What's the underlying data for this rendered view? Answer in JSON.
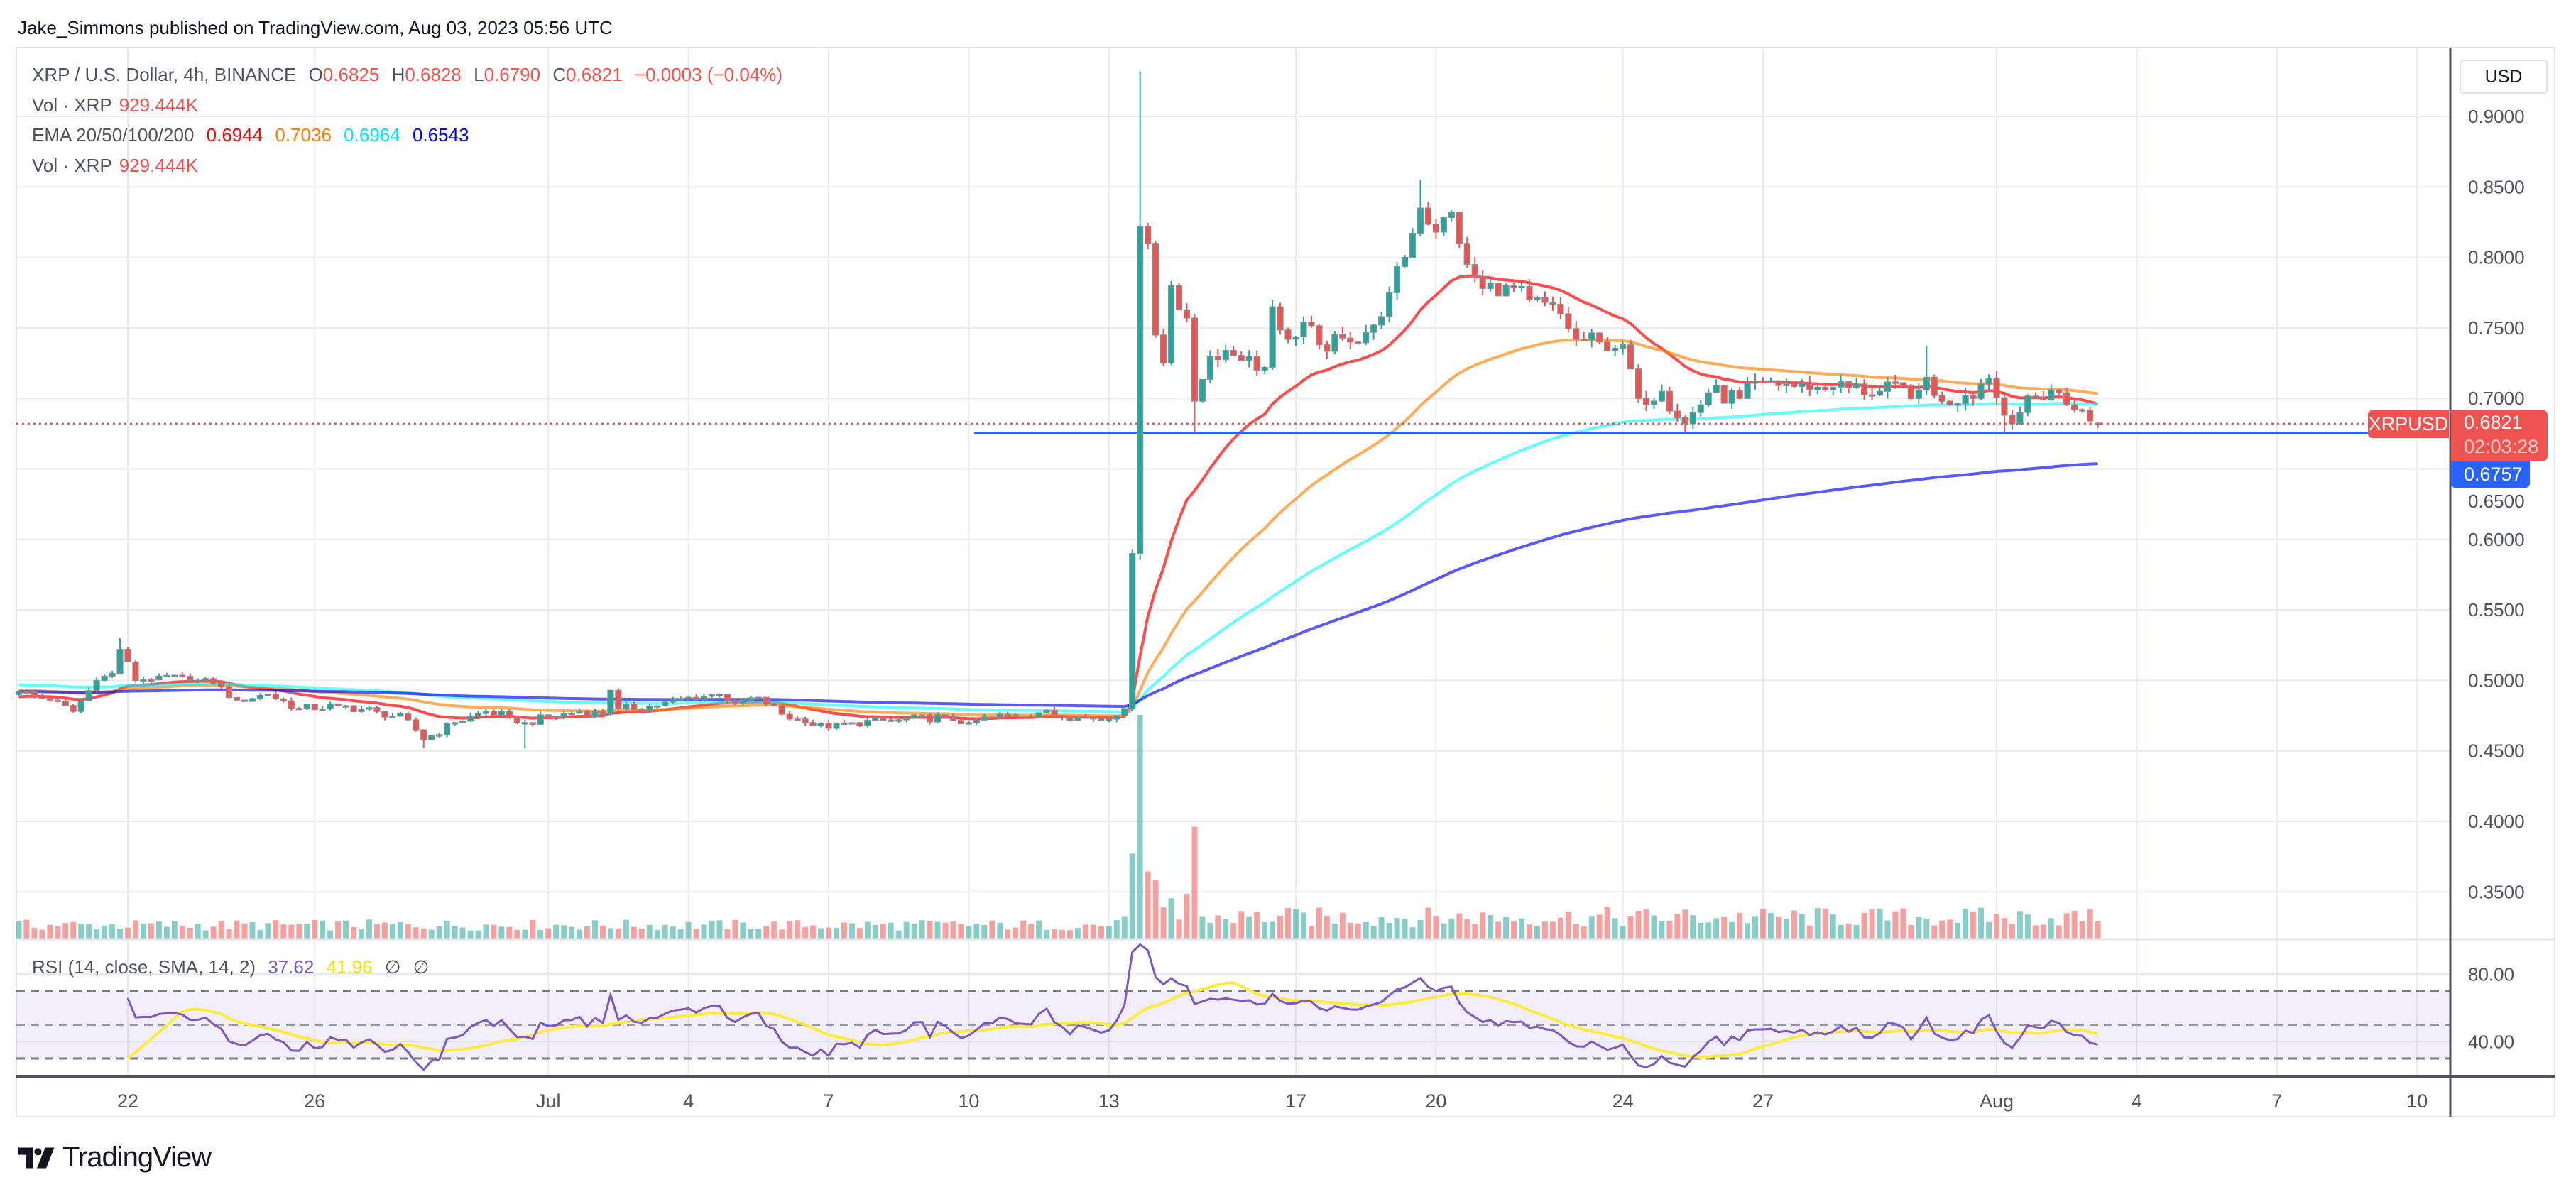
{
  "header": {
    "published": "Jake_Simmons published on TradingView.com, Aug 03, 2023 05:56 UTC"
  },
  "legend": {
    "symbol": "XRP / U.S. Dollar, 4h, BINANCE",
    "o_label": "O",
    "o": "0.6825",
    "h_label": "H",
    "h": "0.6828",
    "l_label": "L",
    "l": "0.6790",
    "c_label": "C",
    "c": "0.6821",
    "change": "−0.0003 (−0.04%)",
    "vol_label": "Vol · XRP",
    "vol": "929.444K",
    "ema_label": "EMA 20/50/100/200",
    "ema20": "0.6944",
    "ema50": "0.7036",
    "ema100": "0.6964",
    "ema200": "0.6543",
    "vol2_label": "Vol · XRP",
    "vol2": "929.444K",
    "rsi_label": "RSI (14, close, SMA, 14, 2)",
    "rsi": "37.62",
    "rsi_sma": "41.96",
    "rsi_extra1": "∅",
    "rsi_extra2": "∅"
  },
  "price_axis": {
    "currency": "USD",
    "ticks": [
      "0.9000",
      "0.8500",
      "0.8000",
      "0.7500",
      "0.7000",
      "0.6500",
      "0.6000",
      "0.5500",
      "0.5000",
      "0.4500",
      "0.4000",
      "0.3500"
    ],
    "symbol_tag": "XRPUSD",
    "last_price": "0.6821",
    "countdown": "02:03:28",
    "line_price": "0.6757"
  },
  "rsi_axis": {
    "ticks": [
      "80.00",
      "40.00"
    ]
  },
  "time_axis": {
    "ticks": [
      {
        "label": "22",
        "date": "2023-06-22"
      },
      {
        "label": "26",
        "date": "2023-06-26"
      },
      {
        "label": "Jul",
        "date": "2023-07-01"
      },
      {
        "label": "4",
        "date": "2023-07-04"
      },
      {
        "label": "7",
        "date": "2023-07-07"
      },
      {
        "label": "10",
        "date": "2023-07-10"
      },
      {
        "label": "13",
        "date": "2023-07-13"
      },
      {
        "label": "17",
        "date": "2023-07-17"
      },
      {
        "label": "20",
        "date": "2023-07-20"
      },
      {
        "label": "24",
        "date": "2023-07-24"
      },
      {
        "label": "27",
        "date": "2023-07-27"
      },
      {
        "label": "Aug",
        "date": "2023-08-01"
      },
      {
        "label": "4",
        "date": "2023-08-04"
      },
      {
        "label": "7",
        "date": "2023-08-07"
      },
      {
        "label": "10",
        "date": "2023-08-10"
      }
    ]
  },
  "brand": {
    "name": "TradingView"
  },
  "colors": {
    "up": "#26a69a",
    "down": "#ef5350",
    "ema20": "#ff0000",
    "ema50": "#ff8000",
    "ema100": "#00ffff",
    "ema200": "#0000ff",
    "rsi": "#7e57c2",
    "rsi_sma": "#ffeb3b",
    "last_price": "#ef5350",
    "hline": "#2962ff"
  },
  "chart_data": {
    "type": "candlestick",
    "interval": "4h",
    "ylim": [
      0.33,
      0.93
    ],
    "grid": true,
    "horizontal_line": 0.6757,
    "last_bar": {
      "time": "2023-08-03T04:00",
      "open": 0.6825,
      "high": 0.6828,
      "low": 0.679,
      "close": 0.6821
    },
    "close_path": [
      [
        "2023-06-19T16:00",
        0.492
      ],
      [
        "2023-06-20T08:00",
        0.486
      ],
      [
        "2023-06-20T20:00",
        0.478
      ],
      [
        "2023-06-21T08:00",
        0.5
      ],
      [
        "2023-06-21T16:00",
        0.505
      ],
      [
        "2023-06-21T20:00",
        0.522
      ],
      [
        "2023-06-22T04:00",
        0.5
      ],
      [
        "2023-06-22T16:00",
        0.503
      ],
      [
        "2023-06-23T08:00",
        0.5
      ],
      [
        "2023-06-23T20:00",
        0.498
      ],
      [
        "2023-06-24T08:00",
        0.486
      ],
      [
        "2023-06-25T00:00",
        0.49
      ],
      [
        "2023-06-25T16:00",
        0.48
      ],
      [
        "2023-06-26T12:00",
        0.482
      ],
      [
        "2023-06-27T08:00",
        0.478
      ],
      [
        "2023-06-28T00:00",
        0.472
      ],
      [
        "2023-06-28T08:00",
        0.458
      ],
      [
        "2023-06-29T00:00",
        0.47
      ],
      [
        "2023-06-29T16:00",
        0.478
      ],
      [
        "2023-06-30T04:00",
        0.474
      ],
      [
        "2023-06-30T12:00",
        0.47
      ],
      [
        "2023-07-01T00:00",
        0.474
      ],
      [
        "2023-07-01T16:00",
        0.478
      ],
      [
        "2023-07-02T04:00",
        0.476
      ],
      [
        "2023-07-02T08:00",
        0.493
      ],
      [
        "2023-07-02T12:00",
        0.48
      ],
      [
        "2023-07-03T08:00",
        0.482
      ],
      [
        "2023-07-04T00:00",
        0.488
      ],
      [
        "2023-07-04T16:00",
        0.49
      ],
      [
        "2023-07-05T00:00",
        0.484
      ],
      [
        "2023-07-05T12:00",
        0.488
      ],
      [
        "2023-07-06T00:00",
        0.476
      ],
      [
        "2023-07-06T12:00",
        0.47
      ],
      [
        "2023-07-07T00:00",
        0.466
      ],
      [
        "2023-07-07T12:00",
        0.47
      ],
      [
        "2023-07-08T12:00",
        0.472
      ],
      [
        "2023-07-09T12:00",
        0.474
      ],
      [
        "2023-07-10T00:00",
        0.47
      ],
      [
        "2023-07-10T12:00",
        0.474
      ],
      [
        "2023-07-11T12:00",
        0.477
      ],
      [
        "2023-07-12T08:00",
        0.474
      ],
      [
        "2023-07-12T20:00",
        0.472
      ],
      [
        "2023-07-13T04:00",
        0.475
      ],
      [
        "2023-07-13T08:00",
        0.48
      ],
      [
        "2023-07-13T12:00",
        0.59
      ],
      [
        "2023-07-13T16:00",
        0.822
      ],
      [
        "2023-07-13T20:00",
        0.81
      ],
      [
        "2023-07-14T00:00",
        0.745
      ],
      [
        "2023-07-14T04:00",
        0.725
      ],
      [
        "2023-07-14T08:00",
        0.78
      ],
      [
        "2023-07-14T16:00",
        0.757
      ],
      [
        "2023-07-14T20:00",
        0.698
      ],
      [
        "2023-07-15T04:00",
        0.73
      ],
      [
        "2023-07-15T12:00",
        0.734
      ],
      [
        "2023-07-16T00:00",
        0.73
      ],
      [
        "2023-07-16T08:00",
        0.722
      ],
      [
        "2023-07-16T12:00",
        0.765
      ],
      [
        "2023-07-16T20:00",
        0.742
      ],
      [
        "2023-07-17T04:00",
        0.754
      ],
      [
        "2023-07-17T12:00",
        0.738
      ],
      [
        "2023-07-18T04:00",
        0.74
      ],
      [
        "2023-07-18T16:00",
        0.752
      ],
      [
        "2023-07-19T00:00",
        0.775
      ],
      [
        "2023-07-19T08:00",
        0.8
      ],
      [
        "2023-07-19T16:00",
        0.835
      ],
      [
        "2023-07-20T00:00",
        0.818
      ],
      [
        "2023-07-20T08:00",
        0.832
      ],
      [
        "2023-07-20T16:00",
        0.795
      ],
      [
        "2023-07-21T00:00",
        0.778
      ],
      [
        "2023-07-21T12:00",
        0.78
      ],
      [
        "2023-07-22T00:00",
        0.77
      ],
      [
        "2023-07-22T16:00",
        0.76
      ],
      [
        "2023-07-23T00:00",
        0.742
      ],
      [
        "2023-07-23T12:00",
        0.74
      ],
      [
        "2023-07-24T00:00",
        0.738
      ],
      [
        "2023-07-24T08:00",
        0.7
      ],
      [
        "2023-07-24T20:00",
        0.705
      ],
      [
        "2023-07-25T08:00",
        0.682
      ],
      [
        "2023-07-25T20:00",
        0.704
      ],
      [
        "2023-07-26T12:00",
        0.7
      ],
      [
        "2023-07-27T00:00",
        0.712
      ],
      [
        "2023-07-27T12:00",
        0.71
      ],
      [
        "2023-07-28T00:00",
        0.706
      ],
      [
        "2023-07-28T12:00",
        0.708
      ],
      [
        "2023-07-29T12:00",
        0.705
      ],
      [
        "2023-07-30T08:00",
        0.706
      ],
      [
        "2023-07-30T12:00",
        0.715
      ],
      [
        "2023-07-30T20:00",
        0.698
      ],
      [
        "2023-07-31T08:00",
        0.702
      ],
      [
        "2023-07-31T20:00",
        0.714
      ],
      [
        "2023-08-01T04:00",
        0.688
      ],
      [
        "2023-08-01T12:00",
        0.69
      ],
      [
        "2023-08-01T20:00",
        0.7
      ],
      [
        "2023-08-02T04:00",
        0.706
      ],
      [
        "2023-08-02T16:00",
        0.692
      ],
      [
        "2023-08-03T00:00",
        0.684
      ],
      [
        "2023-08-03T04:00",
        0.6821
      ]
    ],
    "notable_highs": [
      [
        "2023-06-21T20:00",
        0.53
      ],
      [
        "2023-07-13T16:00",
        0.932
      ],
      [
        "2023-07-19T16:00",
        0.855
      ],
      [
        "2023-07-30T12:00",
        0.737
      ]
    ],
    "notable_lows": [
      [
        "2023-06-28T08:00",
        0.452
      ],
      [
        "2023-06-30T12:00",
        0.452
      ],
      [
        "2023-07-14T20:00",
        0.676
      ],
      [
        "2023-07-25T08:00",
        0.676
      ],
      [
        "2023-08-01T04:00",
        0.6757
      ]
    ],
    "volume_highlights": [
      [
        "2023-07-13T08:00",
        0.1
      ],
      [
        "2023-07-13T12:00",
        0.38
      ],
      [
        "2023-07-13T16:00",
        1.0
      ],
      [
        "2023-07-13T20:00",
        0.3
      ],
      [
        "2023-07-14T00:00",
        0.26
      ],
      [
        "2023-07-14T04:00",
        0.14
      ],
      [
        "2023-07-14T08:00",
        0.18
      ],
      [
        "2023-07-14T16:00",
        0.2
      ],
      [
        "2023-07-14T20:00",
        0.5
      ],
      [
        "2023-07-15T00:00",
        0.1
      ]
    ]
  }
}
